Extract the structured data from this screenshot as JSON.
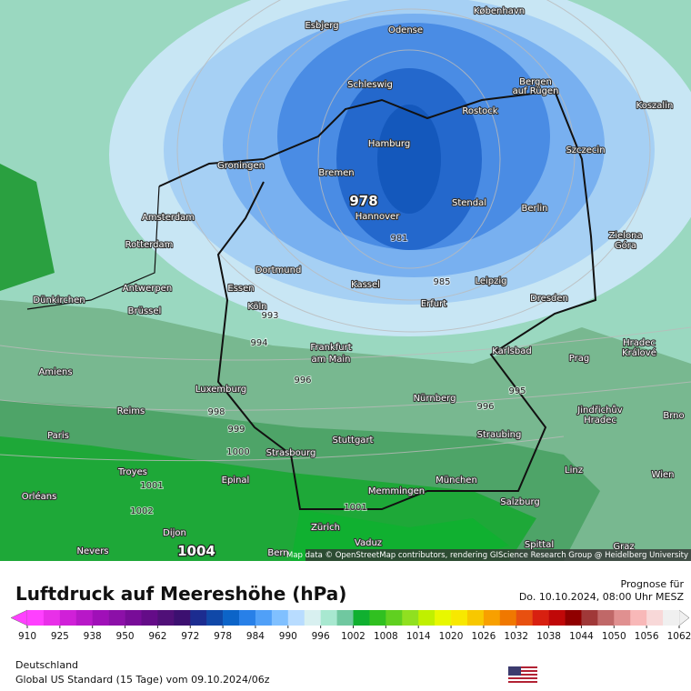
{
  "map": {
    "cities": [
      "Esbjerg",
      "Odense",
      "København",
      "Schleswig",
      "Bergen",
      "auf Rügen",
      "Rostock",
      "Koszalin",
      "Hamburg",
      "Szczecin",
      "Groningen",
      "Bremen",
      "Stendal",
      "Berlin",
      "Amsterdam",
      "Hannover",
      "Zielona",
      "Góra",
      "Rotterdam",
      "Dortmund",
      "Antwerpen",
      "Essen",
      "Leipzig",
      "Kassel",
      "Erfurt",
      "Dresden",
      "Dünkirchen",
      "Köln",
      "Brüssel",
      "Karlsbad",
      "Hradec",
      "Králové",
      "Frankfurt",
      "am Main",
      "Prag",
      "Amiens",
      "Luxemburg",
      "Nürnberg",
      "Jindřichův",
      "Hradec",
      "Reims",
      "Brno",
      "Paris",
      "Stuttgart",
      "Straubing",
      "Strasbourg",
      "Troyes",
      "München",
      "Linz",
      "Wien",
      "Epinal",
      "Memmingen",
      "Orléans",
      "Salzburg",
      "Dijon",
      "Zürich",
      "Vaduz",
      "Nevers",
      "Bern",
      "Spittal",
      "Graz"
    ],
    "isobar_labels": [
      978,
      981,
      985,
      993,
      994,
      996,
      995,
      996,
      998,
      999,
      1000,
      1001,
      1002,
      1001,
      1004
    ],
    "attribution": "Map data © OpenStreetMap contributors, rendering GIScience Research Group @ Heidelberg University"
  },
  "footer": {
    "title": "Luftdruck auf Meereshöhe (hPa)",
    "forecast_label": "Prognose für",
    "forecast_time": "Do. 10.10.2024, 08:00 Uhr MESZ",
    "region": "Deutschland",
    "model": "Global US Standard (15 Tage) vom 09.10.2024/06z"
  },
  "colorbar": {
    "ticks": [
      910,
      925,
      938,
      950,
      962,
      972,
      978,
      984,
      990,
      996,
      1002,
      1008,
      1014,
      1020,
      1026,
      1032,
      1038,
      1044,
      1050,
      1056,
      1062
    ],
    "colors": [
      "#ff40ff",
      "#e830e8",
      "#d020d8",
      "#b818c8",
      "#a010b8",
      "#8c10a8",
      "#780c98",
      "#640c88",
      "#501078",
      "#3c1070",
      "#1c2c90",
      "#1048a8",
      "#0c64c8",
      "#2880e8",
      "#50a0f8",
      "#80c0ff",
      "#b8dcff",
      "#d8f0f0",
      "#a8e8d0",
      "#70c8a0",
      "#10b030",
      "#30c020",
      "#60d020",
      "#90e020",
      "#c0f000",
      "#e8f800",
      "#f8e800",
      "#f8c800",
      "#f8a000",
      "#f07800",
      "#e85010",
      "#d82010",
      "#c00808",
      "#900000",
      "#a03838",
      "#c06868",
      "#e09090",
      "#f8b8b8",
      "#f8d8d8",
      "#f0f0f0"
    ]
  }
}
